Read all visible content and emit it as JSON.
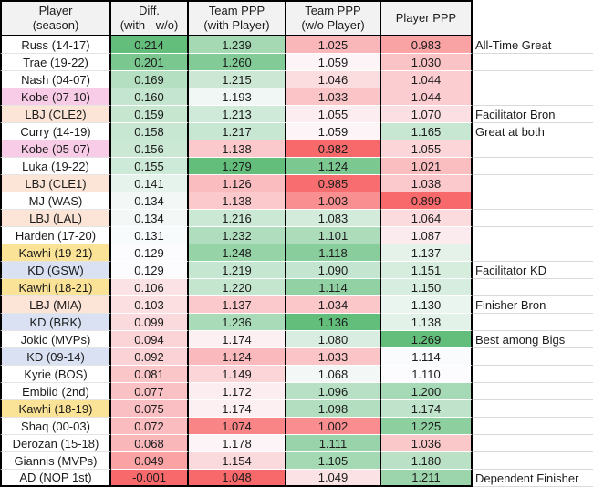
{
  "header": {
    "columns": [
      {
        "line1": "Player",
        "line2": "(season)"
      },
      {
        "line1": "Diff.",
        "line2": "(with - w/o)"
      },
      {
        "line1": "Team PPP",
        "line2": "(with Player)"
      },
      {
        "line1": "Team PPP",
        "line2": "(w/o Player)"
      },
      {
        "line1": "Player PPP"
      }
    ]
  },
  "colors": {
    "scale_min": "#F8696B",
    "scale_mid": "#FCFCFF",
    "scale_max": "#63BE7B",
    "header_bg": "#F2F2F2",
    "table_border": "#000000",
    "gridline": "#D9D9D9",
    "row_label_fills": {
      "white": "#FFFFFF",
      "pink": "#F8CCE6",
      "peach": "#FCE4D6",
      "yellow": "#FAE396",
      "blue": "#D9E1F2"
    }
  },
  "rows": [
    {
      "player": "Russ (14-17)",
      "fill": "white",
      "diff": "0.214",
      "team_with": "1.239",
      "team_wo": "1.025",
      "player_ppp": "0.983",
      "note": "All-Time Great"
    },
    {
      "player": "Trae (19-22)",
      "fill": "white",
      "diff": "0.201",
      "team_with": "1.260",
      "team_wo": "1.059",
      "player_ppp": "1.030",
      "note": ""
    },
    {
      "player": "Nash (04-07)",
      "fill": "white",
      "diff": "0.169",
      "team_with": "1.215",
      "team_wo": "1.046",
      "player_ppp": "1.044",
      "note": ""
    },
    {
      "player": "Kobe (07-10)",
      "fill": "pink",
      "diff": "0.160",
      "team_with": "1.193",
      "team_wo": "1.033",
      "player_ppp": "1.044",
      "note": ""
    },
    {
      "player": "LBJ (CLE2)",
      "fill": "peach",
      "diff": "0.159",
      "team_with": "1.213",
      "team_wo": "1.055",
      "player_ppp": "1.070",
      "note": "Facilitator Bron"
    },
    {
      "player": "Curry (14-19)",
      "fill": "white",
      "diff": "0.158",
      "team_with": "1.217",
      "team_wo": "1.059",
      "player_ppp": "1.165",
      "note": "Great at both"
    },
    {
      "player": "Kobe (05-07)",
      "fill": "pink",
      "diff": "0.156",
      "team_with": "1.138",
      "team_wo": "0.982",
      "player_ppp": "1.055",
      "note": ""
    },
    {
      "player": "Luka (19-22)",
      "fill": "white",
      "diff": "0.155",
      "team_with": "1.279",
      "team_wo": "1.124",
      "player_ppp": "1.021",
      "note": ""
    },
    {
      "player": "LBJ (CLE1)",
      "fill": "peach",
      "diff": "0.141",
      "team_with": "1.126",
      "team_wo": "0.985",
      "player_ppp": "1.038",
      "note": ""
    },
    {
      "player": "MJ (WAS)",
      "fill": "white",
      "diff": "0.134",
      "team_with": "1.138",
      "team_wo": "1.003",
      "player_ppp": "0.899",
      "note": ""
    },
    {
      "player": "LBJ (LAL)",
      "fill": "peach",
      "diff": "0.134",
      "team_with": "1.216",
      "team_wo": "1.083",
      "player_ppp": "1.064",
      "note": ""
    },
    {
      "player": "Harden (17-20)",
      "fill": "white",
      "diff": "0.131",
      "team_with": "1.232",
      "team_wo": "1.101",
      "player_ppp": "1.087",
      "note": ""
    },
    {
      "player": "Kawhi (19-21)",
      "fill": "yellow",
      "diff": "0.129",
      "team_with": "1.248",
      "team_wo": "1.118",
      "player_ppp": "1.137",
      "note": ""
    },
    {
      "player": "KD (GSW)",
      "fill": "blue",
      "diff": "0.129",
      "team_with": "1.219",
      "team_wo": "1.090",
      "player_ppp": "1.151",
      "note": "Facilitator KD"
    },
    {
      "player": "Kawhi (18-21)",
      "fill": "yellow",
      "diff": "0.106",
      "team_with": "1.220",
      "team_wo": "1.114",
      "player_ppp": "1.150",
      "note": ""
    },
    {
      "player": "LBJ (MIA)",
      "fill": "peach",
      "diff": "0.103",
      "team_with": "1.137",
      "team_wo": "1.034",
      "player_ppp": "1.130",
      "note": "Finisher Bron"
    },
    {
      "player": "KD (BRK)",
      "fill": "blue",
      "diff": "0.099",
      "team_with": "1.236",
      "team_wo": "1.136",
      "player_ppp": "1.138",
      "note": ""
    },
    {
      "player": "Jokic (MVPs)",
      "fill": "white",
      "diff": "0.094",
      "team_with": "1.174",
      "team_wo": "1.080",
      "player_ppp": "1.269",
      "note": "Best among Bigs"
    },
    {
      "player": "KD (09-14)",
      "fill": "blue",
      "diff": "0.092",
      "team_with": "1.124",
      "team_wo": "1.033",
      "player_ppp": "1.114",
      "note": ""
    },
    {
      "player": "Kyrie (BOS)",
      "fill": "white",
      "diff": "0.081",
      "team_with": "1.149",
      "team_wo": "1.068",
      "player_ppp": "1.110",
      "note": ""
    },
    {
      "player": "Embiid (2nd)",
      "fill": "white",
      "diff": "0.077",
      "team_with": "1.172",
      "team_wo": "1.096",
      "player_ppp": "1.200",
      "note": ""
    },
    {
      "player": "Kawhi (18-19)",
      "fill": "yellow",
      "diff": "0.075",
      "team_with": "1.174",
      "team_wo": "1.098",
      "player_ppp": "1.174",
      "note": ""
    },
    {
      "player": "Shaq (00-03)",
      "fill": "white",
      "diff": "0.072",
      "team_with": "1.074",
      "team_wo": "1.002",
      "player_ppp": "1.225",
      "note": ""
    },
    {
      "player": "Derozan (15-18)",
      "fill": "white",
      "diff": "0.068",
      "team_with": "1.178",
      "team_wo": "1.111",
      "player_ppp": "1.036",
      "note": ""
    },
    {
      "player": "Giannis (MVPs)",
      "fill": "white",
      "diff": "0.049",
      "team_with": "1.154",
      "team_wo": "1.105",
      "player_ppp": "1.180",
      "note": ""
    },
    {
      "player": "AD (NOP 1st)",
      "fill": "white",
      "diff": "-0.001",
      "team_with": "1.048",
      "team_wo": "1.049",
      "player_ppp": "1.211",
      "note": "Dependent Finisher"
    }
  ]
}
